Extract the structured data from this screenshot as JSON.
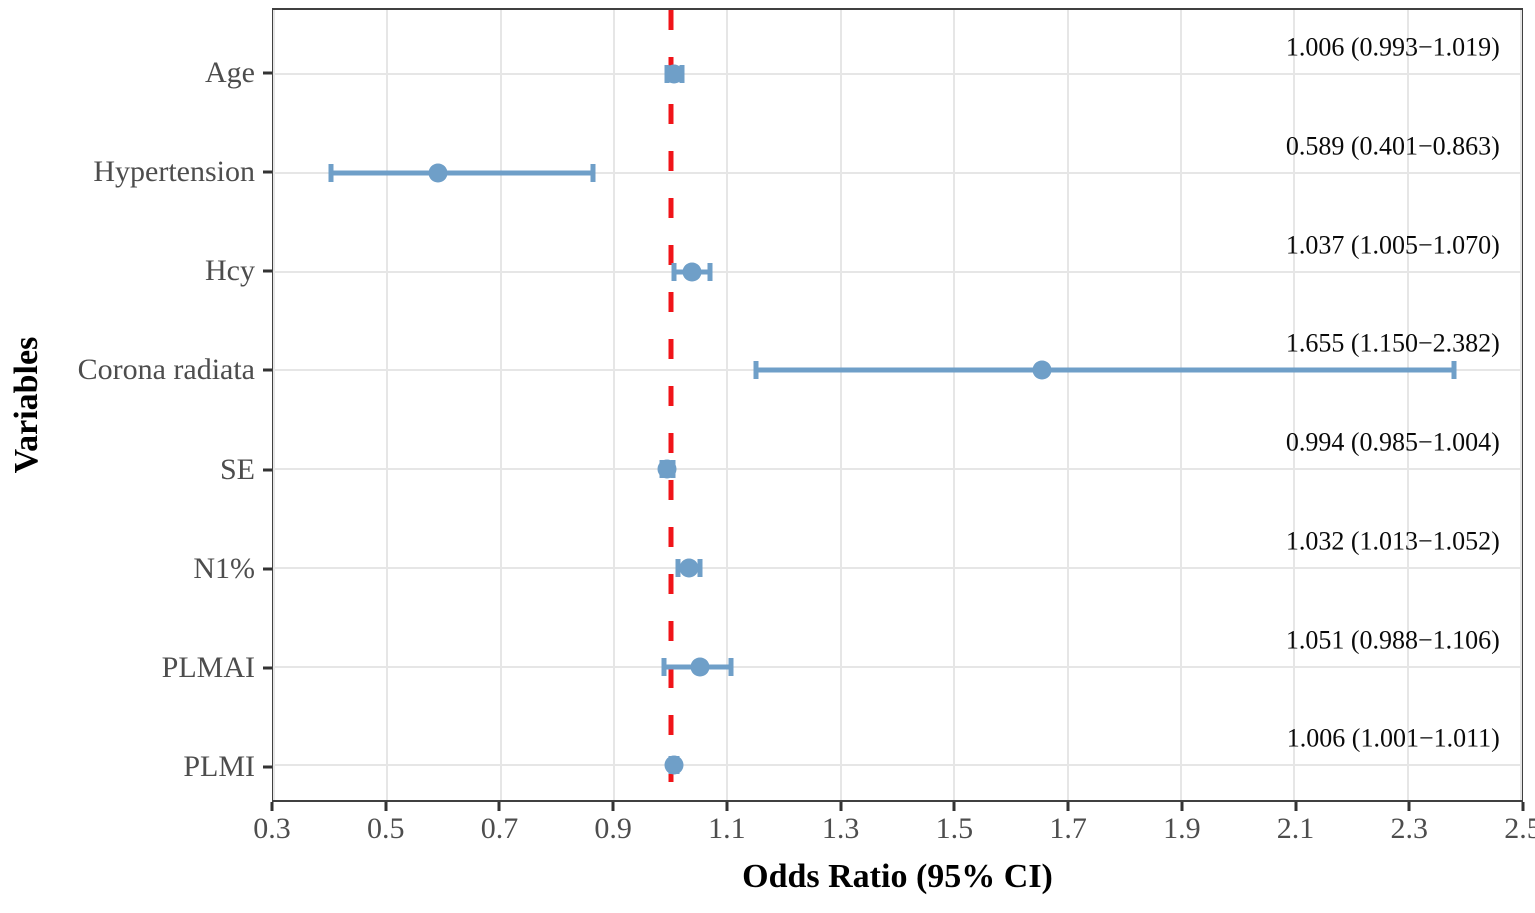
{
  "chart_data": {
    "type": "forest",
    "title": "",
    "xlabel": "Odds Ratio (95% CI)",
    "ylabel": "Variables",
    "xlim": [
      0.3,
      2.5
    ],
    "x_ticks": [
      "0.3",
      "0.5",
      "0.7",
      "0.9",
      "1.1",
      "1.3",
      "1.5",
      "1.7",
      "1.9",
      "2.1",
      "2.3",
      "2.5"
    ],
    "grid": "major-only",
    "legend": "none",
    "reference_line": {
      "x": 1.0,
      "style": "dashed"
    },
    "rows": [
      {
        "variable": "Age",
        "or": 1.006,
        "ci_low": 0.993,
        "ci_high": 1.019,
        "label": "1.006 (0.993−1.019)"
      },
      {
        "variable": "Hypertension",
        "or": 0.589,
        "ci_low": 0.401,
        "ci_high": 0.863,
        "label": "0.589 (0.401−0.863)"
      },
      {
        "variable": "Hcy",
        "or": 1.037,
        "ci_low": 1.005,
        "ci_high": 1.07,
        "label": "1.037 (1.005−1.070)"
      },
      {
        "variable": "Corona radiata",
        "or": 1.655,
        "ci_low": 1.15,
        "ci_high": 2.382,
        "label": "1.655 (1.150−2.382)"
      },
      {
        "variable": "SE",
        "or": 0.994,
        "ci_low": 0.985,
        "ci_high": 1.004,
        "label": "0.994 (0.985−1.004)"
      },
      {
        "variable": "N1%",
        "or": 1.032,
        "ci_low": 1.013,
        "ci_high": 1.052,
        "label": "1.032 (1.013−1.052)"
      },
      {
        "variable": "PLMAI",
        "or": 1.051,
        "ci_low": 0.988,
        "ci_high": 1.106,
        "label": "1.051 (0.988−1.106)"
      },
      {
        "variable": "PLMI",
        "or": 1.006,
        "ci_low": 1.001,
        "ci_high": 1.011,
        "label": "1.006 (1.001−1.011)"
      }
    ],
    "colors": {
      "point": "#6F9FC8",
      "error_bar": "#6F9FC8",
      "reference_line": "#F01419",
      "grid": "#E6E6E6",
      "panel_border": "#404040",
      "tick": "#333333",
      "axis_text": "#4D4D4D",
      "annotation": "#0A0A0A",
      "title_text": "#000000"
    }
  }
}
